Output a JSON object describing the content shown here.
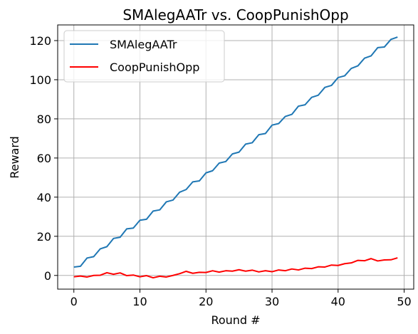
{
  "chart_data": {
    "type": "line",
    "title": "SMAlegAATr vs. CoopPunishOpp",
    "xlabel": "Round #",
    "ylabel": "Reward",
    "xlim": [
      -2.45,
      51.45
    ],
    "ylim": [
      -7,
      128
    ],
    "xticks": [
      0,
      10,
      20,
      30,
      40,
      50
    ],
    "yticks": [
      0,
      20,
      40,
      60,
      80,
      100,
      120
    ],
    "grid": true,
    "legend_position": "upper left",
    "x": [
      0,
      1,
      2,
      3,
      4,
      5,
      6,
      7,
      8,
      9,
      10,
      11,
      12,
      13,
      14,
      15,
      16,
      17,
      18,
      19,
      20,
      21,
      22,
      23,
      24,
      25,
      26,
      27,
      28,
      29,
      30,
      31,
      32,
      33,
      34,
      35,
      36,
      37,
      38,
      39,
      40,
      41,
      42,
      43,
      44,
      45,
      46,
      47,
      48,
      49
    ],
    "series": [
      {
        "name": "SMAlegAATr",
        "color": "#1f77b4",
        "values": [
          4.3,
          4.7,
          8.9,
          9.6,
          13.6,
          14.7,
          18.9,
          19.5,
          23.8,
          24.2,
          28.2,
          28.7,
          32.9,
          33.5,
          37.6,
          38.5,
          42.5,
          43.9,
          47.8,
          48.3,
          52.4,
          53.5,
          57.4,
          58.2,
          62.1,
          63.0,
          67.1,
          67.8,
          71.9,
          72.5,
          76.8,
          77.6,
          81.2,
          82.3,
          86.5,
          87.2,
          91.0,
          92.1,
          96.1,
          97.1,
          101.1,
          102.0,
          105.8,
          107.1,
          111.0,
          112.2,
          116.4,
          116.7,
          120.6,
          121.8
        ]
      },
      {
        "name": "CoopPunishOpp",
        "color": "#ff0000",
        "values": [
          -0.7,
          -0.3,
          -0.8,
          0.0,
          0.1,
          1.4,
          0.6,
          1.3,
          -0.1,
          0.2,
          -0.7,
          -0.1,
          -1.2,
          -0.4,
          -0.8,
          0.0,
          0.9,
          2.1,
          1.1,
          1.6,
          1.5,
          2.4,
          1.7,
          2.4,
          2.2,
          2.9,
          2.2,
          2.7,
          1.8,
          2.4,
          1.9,
          2.8,
          2.4,
          3.3,
          2.8,
          3.7,
          3.5,
          4.4,
          4.3,
          5.3,
          5.1,
          6.0,
          6.4,
          7.7,
          7.5,
          8.6,
          7.4,
          7.9,
          8.0,
          9.0
        ]
      }
    ]
  }
}
